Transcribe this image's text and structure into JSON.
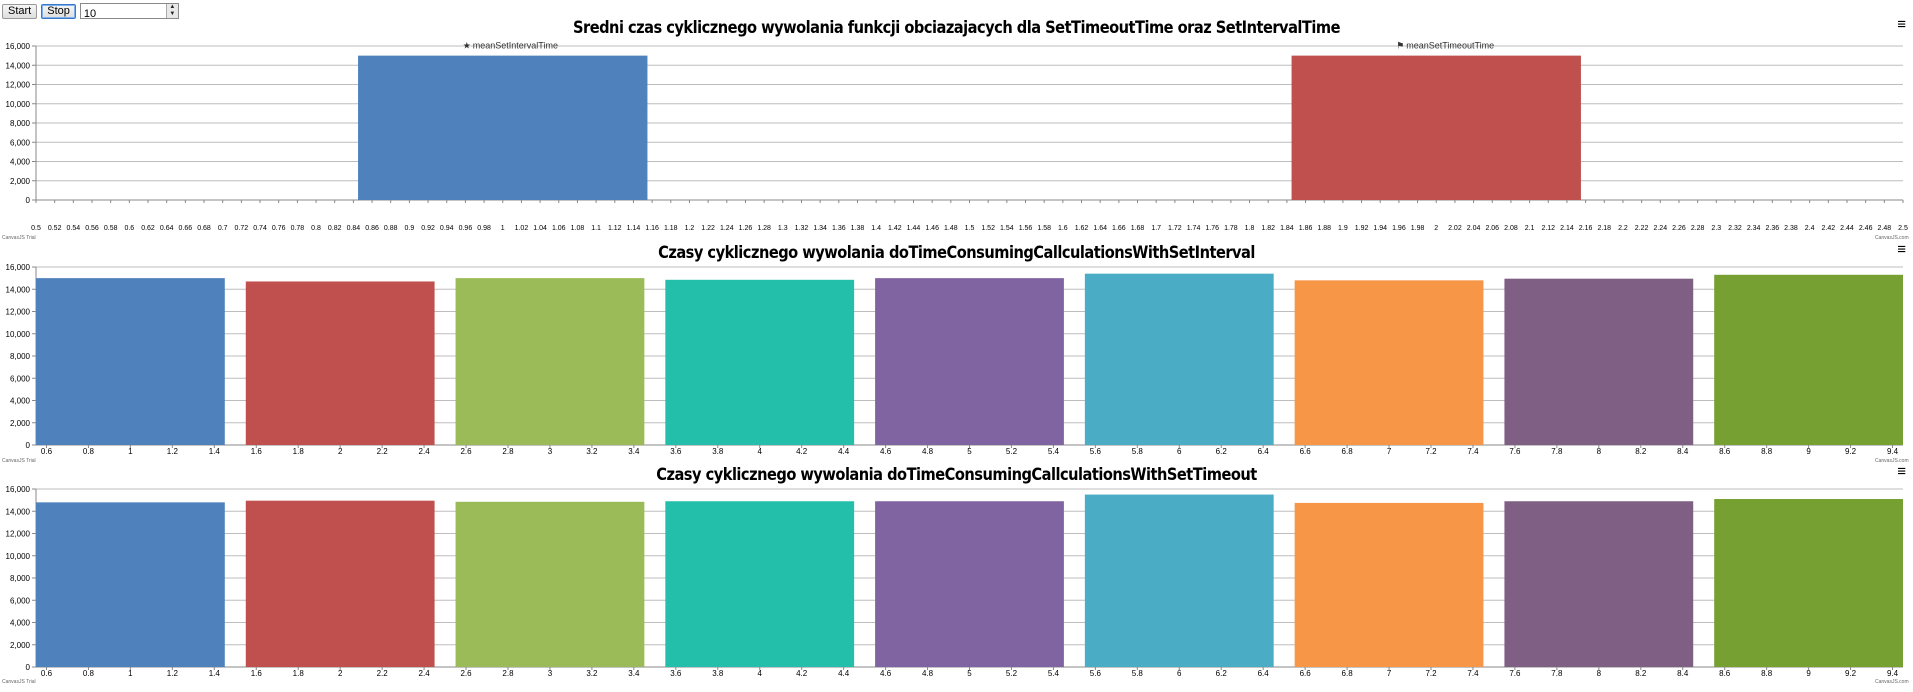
{
  "toolbar": {
    "start_label": "Start",
    "stop_label": "Stop",
    "interval_value": "10",
    "spin_up_icon": "triangle-up-icon",
    "spin_down_icon": "triangle-down-icon"
  },
  "menu_icon": "hamburger-menu-icon",
  "credits": {
    "left": "CanvasJS Trial",
    "right": "CanvasJS.com"
  },
  "chart_data": [
    {
      "type": "bar",
      "title": "Sredni czas cyklicznego wywolania funkcji obciazajacych dla SetTimeoutTime oraz SetIntervalTime",
      "xlabel": "",
      "ylabel": "",
      "ylim": [
        0,
        16000
      ],
      "yticks": [
        "0",
        "2,000",
        "4,000",
        "6,000",
        "8,000",
        "10,000",
        "12,000",
        "14,000",
        "16,000"
      ],
      "xlim": [
        0.5,
        2.5
      ],
      "xtick_step": 0.02,
      "grid": true,
      "series": [
        {
          "name": "meanSetIntervalTime",
          "marker": "star-icon",
          "x": [
            1.0
          ],
          "values": [
            15000
          ],
          "color": "#4F81BC"
        },
        {
          "name": "meanSetTimeoutTime",
          "marker": "flag-icon",
          "x": [
            2.0
          ],
          "values": [
            15000
          ],
          "color": "#C0504E"
        }
      ],
      "bar_width_x": 0.31
    },
    {
      "type": "bar",
      "title": "Czasy cyklicznego wywolania doTimeConsumingCallculationsWithSetInterval",
      "xlabel": "",
      "ylabel": "",
      "ylim": [
        0,
        16000
      ],
      "yticks": [
        "0",
        "2,000",
        "4,000",
        "6,000",
        "8,000",
        "10,000",
        "12,000",
        "14,000",
        "16,000"
      ],
      "xlim": [
        0.55,
        9.45
      ],
      "xticks": [
        "0.6",
        "0.8",
        "1",
        "1.2",
        "1.4",
        "1.6",
        "1.8",
        "2",
        "2.2",
        "2.4",
        "2.6",
        "2.8",
        "3",
        "3.2",
        "3.4",
        "3.6",
        "3.8",
        "4",
        "4.2",
        "4.4",
        "4.6",
        "4.8",
        "5",
        "5.2",
        "5.4",
        "5.6",
        "5.8",
        "6",
        "6.2",
        "6.4",
        "6.6",
        "6.8",
        "7",
        "7.2",
        "7.4",
        "7.6",
        "7.8",
        "8",
        "8.2",
        "8.4",
        "8.6",
        "8.8",
        "9",
        "9.2",
        "9.4"
      ],
      "grid": true,
      "x": [
        1,
        2,
        3,
        4,
        5,
        6,
        7,
        8,
        9
      ],
      "values": [
        15000,
        14700,
        15000,
        14850,
        15000,
        15400,
        14800,
        14950,
        15300
      ],
      "colors": [
        "#4F81BC",
        "#C0504E",
        "#9BBB58",
        "#23BFAA",
        "#8064A1",
        "#4AACC5",
        "#F79647",
        "#7F6084",
        "#77A033"
      ],
      "bar_width_x": 0.9
    },
    {
      "type": "bar",
      "title": "Czasy cyklicznego wywolania doTimeConsumingCallculationsWithSetTimeout",
      "xlabel": "",
      "ylabel": "",
      "ylim": [
        0,
        16000
      ],
      "yticks": [
        "0",
        "2,000",
        "4,000",
        "6,000",
        "8,000",
        "10,000",
        "12,000",
        "14,000",
        "16,000"
      ],
      "xlim": [
        0.55,
        9.45
      ],
      "xticks": [
        "0.6",
        "0.8",
        "1",
        "1.2",
        "1.4",
        "1.6",
        "1.8",
        "2",
        "2.2",
        "2.4",
        "2.6",
        "2.8",
        "3",
        "3.2",
        "3.4",
        "3.6",
        "3.8",
        "4",
        "4.2",
        "4.4",
        "4.6",
        "4.8",
        "5",
        "5.2",
        "5.4",
        "5.6",
        "5.8",
        "6",
        "6.2",
        "6.4",
        "6.6",
        "6.8",
        "7",
        "7.2",
        "7.4",
        "7.6",
        "7.8",
        "8",
        "8.2",
        "8.4",
        "8.6",
        "8.8",
        "9",
        "9.2",
        "9.4"
      ],
      "grid": true,
      "x": [
        1,
        2,
        3,
        4,
        5,
        6,
        7,
        8,
        9
      ],
      "values": [
        14800,
        14950,
        14850,
        14900,
        14900,
        15500,
        14750,
        14900,
        15100
      ],
      "colors": [
        "#4F81BC",
        "#C0504E",
        "#9BBB58",
        "#23BFAA",
        "#8064A1",
        "#4AACC5",
        "#F79647",
        "#7F6084",
        "#77A033"
      ],
      "bar_width_x": 0.9
    }
  ]
}
